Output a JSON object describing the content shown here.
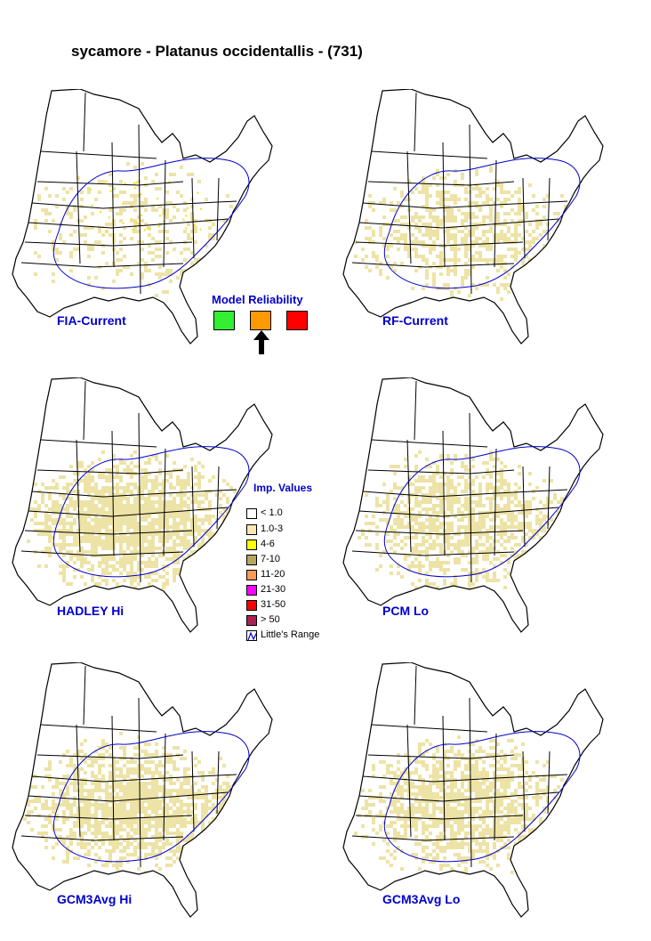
{
  "title": "sycamore - Platanus occidentallis - (731)",
  "panels": [
    {
      "label": "FIA-Current",
      "density": 0.25
    },
    {
      "label": "RF-Current",
      "density": 0.55
    },
    {
      "label": "HADLEY Hi",
      "density": 0.9
    },
    {
      "label": "PCM Lo",
      "density": 0.7
    },
    {
      "label": "GCM3Avg Hi",
      "density": 0.85
    },
    {
      "label": "GCM3Avg Lo",
      "density": 0.8
    }
  ],
  "reliability": {
    "title": "Model Reliability",
    "levels": [
      {
        "color": "#33ee33",
        "icon": "green-square"
      },
      {
        "color": "#ff9900",
        "icon": "orange-square"
      },
      {
        "color": "#ff0000",
        "icon": "red-square"
      }
    ],
    "selected_icon": "arrow-up-icon"
  },
  "legend": {
    "title": "Imp. Values",
    "items": [
      {
        "label": "< 1.0",
        "color": "#ffffff"
      },
      {
        "label": "1.0-3",
        "color": "#f7e7b5"
      },
      {
        "label": "4-6",
        "color": "#ffff00"
      },
      {
        "label": "7-10",
        "color": "#b8a660"
      },
      {
        "label": "11-20",
        "color": "#ff9955"
      },
      {
        "label": "21-30",
        "color": "#ff00ff"
      },
      {
        "label": "31-50",
        "color": "#ff0000"
      },
      {
        "label": "> 50",
        "color": "#aa2255"
      },
      {
        "label": "Little's Range",
        "color": "#0000cc",
        "icon": "range-line-icon"
      }
    ]
  },
  "colors": {
    "fill": "#ede3a6",
    "range": "#0000cc",
    "label": "#0000cc"
  }
}
